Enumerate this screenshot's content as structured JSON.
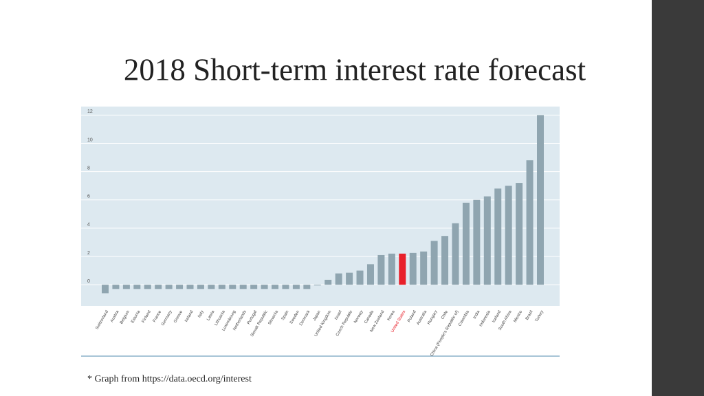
{
  "slide": {
    "title": "2018 Short-term interest rate forecast",
    "footnote": "* Graph from https://data.oecd.org/interest"
  },
  "chart_data": {
    "type": "bar",
    "categories": [
      "Switzerland",
      "Austria",
      "Belgium",
      "Estonia",
      "Finland",
      "France",
      "Germany",
      "Greece",
      "Ireland",
      "Italy",
      "Latvia",
      "Lithuania",
      "Luxembourg",
      "Netherlands",
      "Portugal",
      "Slovak Republic",
      "Slovenia",
      "Spain",
      "Sweden",
      "Denmark",
      "Japan",
      "United Kingdom",
      "Israel",
      "Czech Republic",
      "Norway",
      "Canada",
      "New Zealand",
      "Korea",
      "United States",
      "Poland",
      "Australia",
      "Hungary",
      "Chile",
      "China (People's Republic of)",
      "Colombia",
      "India",
      "Indonesia",
      "Iceland",
      "South Africa",
      "Mexico",
      "Brazil",
      "Turkey"
    ],
    "values": [
      -0.6,
      -0.3,
      -0.3,
      -0.3,
      -0.3,
      -0.3,
      -0.3,
      -0.3,
      -0.3,
      -0.3,
      -0.3,
      -0.3,
      -0.3,
      -0.3,
      -0.3,
      -0.3,
      -0.3,
      -0.3,
      -0.3,
      -0.3,
      -0.05,
      0.35,
      0.8,
      0.85,
      1.0,
      1.45,
      2.1,
      2.2,
      2.2,
      2.25,
      2.35,
      3.1,
      3.45,
      4.35,
      5.8,
      6.0,
      6.25,
      6.8,
      7.0,
      7.2,
      8.8,
      12.0
    ],
    "colors": [
      "#8fa5b0",
      "#8fa5b0",
      "#8fa5b0",
      "#8fa5b0",
      "#8fa5b0",
      "#8fa5b0",
      "#8fa5b0",
      "#8fa5b0",
      "#8fa5b0",
      "#8fa5b0",
      "#8fa5b0",
      "#8fa5b0",
      "#8fa5b0",
      "#8fa5b0",
      "#8fa5b0",
      "#8fa5b0",
      "#8fa5b0",
      "#8fa5b0",
      "#8fa5b0",
      "#8fa5b0",
      "#8fa5b0",
      "#8fa5b0",
      "#8fa5b0",
      "#8fa5b0",
      "#8fa5b0",
      "#8fa5b0",
      "#8fa5b0",
      "#8fa5b0",
      "#e8202a",
      "#8fa5b0",
      "#8fa5b0",
      "#8fa5b0",
      "#8fa5b0",
      "#8fa5b0",
      "#8fa5b0",
      "#8fa5b0",
      "#8fa5b0",
      "#8fa5b0",
      "#8fa5b0",
      "#8fa5b0",
      "#8fa5b0",
      "#8fa5b0"
    ],
    "ylim": [
      -1.5,
      12.6
    ],
    "yticks": [
      0,
      2,
      4,
      6,
      8,
      10,
      12
    ],
    "grid": true
  }
}
